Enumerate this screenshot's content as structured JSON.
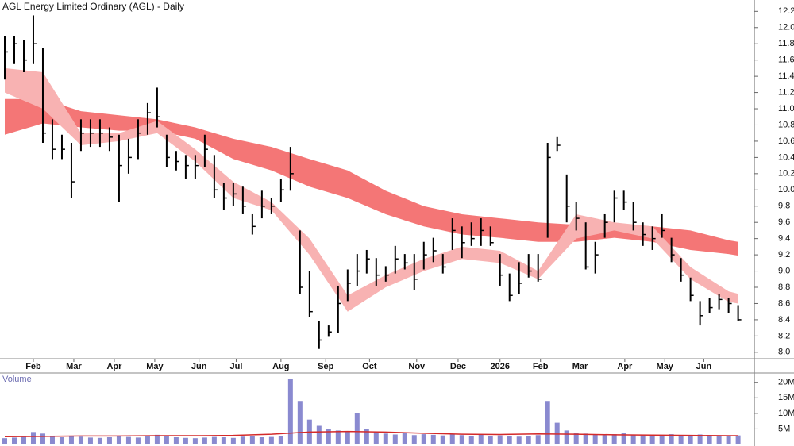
{
  "chart_data": {
    "type": "ohlc",
    "title": "AGL Energy Limited Ordinary (AGL) - Daily",
    "color": "#000000",
    "x": [
      0,
      1,
      2,
      3,
      4,
      5,
      6,
      7,
      8,
      9,
      10,
      11,
      12,
      13,
      14,
      15,
      16,
      17,
      18,
      19,
      20,
      21,
      22,
      23,
      24,
      25,
      26,
      27,
      28,
      29,
      30,
      31,
      32,
      33,
      34,
      35,
      36,
      37,
      38,
      39,
      40,
      41,
      42,
      43,
      44,
      45,
      46,
      47,
      48,
      49,
      50,
      51,
      52,
      53,
      54,
      55,
      56,
      57,
      58,
      59,
      60,
      61,
      62,
      63,
      64,
      65,
      66,
      67,
      68,
      69,
      70,
      71,
      72,
      73,
      74,
      75,
      76,
      77
    ],
    "high": [
      11.9,
      11.9,
      11.85,
      12.15,
      11.75,
      10.87,
      10.68,
      10.58,
      10.87,
      10.87,
      10.87,
      10.77,
      10.68,
      10.63,
      10.87,
      11.07,
      11.26,
      10.68,
      10.48,
      10.43,
      10.43,
      10.68,
      10.43,
      10.09,
      10.09,
      10.04,
      9.7,
      9.99,
      9.9,
      10.14,
      10.53,
      9.5,
      9.0,
      8.38,
      8.33,
      8.82,
      9.02,
      9.21,
      9.26,
      9.16,
      9.06,
      9.31,
      9.21,
      9.21,
      9.36,
      9.41,
      9.21,
      9.65,
      9.55,
      9.6,
      9.65,
      9.55,
      9.21,
      8.97,
      9.11,
      9.21,
      9.21,
      10.58,
      10.65,
      10.19,
      9.85,
      9.6,
      9.36,
      9.7,
      9.99,
      9.99,
      9.85,
      9.6,
      9.55,
      9.7,
      9.41,
      9.16,
      8.92,
      8.63,
      8.67,
      8.72,
      8.67,
      8.58
    ],
    "low": [
      11.36,
      11.55,
      11.45,
      11.55,
      10.58,
      10.38,
      10.38,
      9.9,
      10.48,
      10.53,
      10.53,
      10.48,
      9.85,
      10.2,
      10.38,
      10.68,
      10.77,
      10.28,
      10.24,
      10.14,
      10.14,
      10.28,
      9.9,
      9.75,
      9.8,
      9.7,
      9.45,
      9.65,
      9.7,
      9.85,
      9.99,
      8.72,
      8.43,
      8.04,
      8.19,
      8.24,
      8.63,
      8.82,
      8.97,
      8.82,
      8.87,
      8.97,
      9.02,
      8.77,
      9.02,
      9.11,
      8.97,
      9.26,
      9.16,
      9.31,
      9.31,
      9.31,
      8.82,
      8.63,
      8.72,
      8.92,
      8.87,
      9.41,
      10.48,
      9.6,
      9.5,
      9.02,
      8.97,
      9.41,
      9.6,
      9.75,
      9.5,
      9.31,
      9.26,
      9.41,
      9.11,
      8.87,
      8.63,
      8.33,
      8.48,
      8.53,
      8.48,
      8.38
    ],
    "close": [
      11.7,
      11.8,
      11.6,
      11.8,
      10.7,
      10.5,
      10.5,
      10.1,
      10.7,
      10.7,
      10.7,
      10.65,
      10.3,
      10.4,
      10.7,
      10.95,
      10.9,
      10.4,
      10.35,
      10.3,
      10.3,
      10.5,
      10,
      9.9,
      9.95,
      9.8,
      9.55,
      9.8,
      9.8,
      10,
      10.2,
      8.8,
      8.5,
      8.15,
      8.25,
      8.6,
      8.85,
      9,
      9.15,
      8.95,
      8.95,
      9.15,
      9.1,
      8.9,
      9.2,
      9.25,
      9.05,
      9.5,
      9.35,
      9.4,
      9.5,
      9.35,
      8.95,
      8.7,
      8.85,
      9,
      8.9,
      10.4,
      10.55,
      9.8,
      9.65,
      9.05,
      9.2,
      9.6,
      9.9,
      9.85,
      9.6,
      9.45,
      9.4,
      9.5,
      9.2,
      8.95,
      8.7,
      8.45,
      8.55,
      8.65,
      8.6,
      8.4
    ],
    "xlim": [
      -0.5,
      78.7
    ],
    "xticks": [
      {
        "value": 3,
        "label": "Feb"
      },
      {
        "value": 7.25,
        "label": "Mar"
      },
      {
        "value": 11.5,
        "label": "Apr"
      },
      {
        "value": 15.75,
        "label": "May"
      },
      {
        "value": 20.4,
        "label": "Jun"
      },
      {
        "value": 24.3,
        "label": "Jul"
      },
      {
        "value": 29,
        "label": "Aug"
      },
      {
        "value": 33.7,
        "label": "Sep"
      },
      {
        "value": 38.3,
        "label": "Oct"
      },
      {
        "value": 43.25,
        "label": "Nov"
      },
      {
        "value": 47.6,
        "label": "Dec"
      },
      {
        "value": 52,
        "label": "2026"
      },
      {
        "value": 56.25,
        "label": "Feb"
      },
      {
        "value": 60.4,
        "label": "Mar"
      },
      {
        "value": 65.1,
        "label": "Apr"
      },
      {
        "value": 69.3,
        "label": "May"
      },
      {
        "value": 73.4,
        "label": "Jun"
      }
    ],
    "ylim": [
      7.92,
      12.34
    ],
    "yticks": [
      {
        "value": 8,
        "label": "8.0"
      },
      8.2,
      8.4,
      8.6,
      8.8,
      {
        "value": 9,
        "label": "9.0"
      },
      9.2,
      9.4,
      9.6,
      9.8,
      {
        "value": 10,
        "label": "10.0"
      },
      10.2,
      10.4,
      10.6,
      10.8,
      {
        "value": 11,
        "label": "11.0"
      },
      11.2,
      11.4,
      11.6,
      11.8,
      {
        "value": 12,
        "label": "12.0"
      },
      12.2
    ],
    "bands": {
      "x": [
        0,
        4,
        8,
        12,
        16,
        20,
        24,
        28,
        32,
        36,
        40,
        44,
        48,
        52,
        56,
        60,
        64,
        68,
        72,
        76,
        77
      ],
      "series": [
        {
          "color": "#f47676",
          "upper": [
            11.12,
            11.12,
            10.97,
            10.92,
            10.87,
            10.77,
            10.63,
            10.53,
            10.38,
            10.24,
            9.99,
            9.8,
            9.7,
            9.65,
            9.6,
            9.57,
            9.58,
            9.55,
            9.5,
            9.38,
            9.36
          ],
          "lower": [
            10.68,
            10.82,
            10.77,
            10.73,
            10.73,
            10.63,
            10.38,
            10.24,
            10.04,
            9.9,
            9.7,
            9.55,
            9.45,
            9.41,
            9.36,
            9.36,
            9.41,
            9.36,
            9.26,
            9.21,
            9.19
          ]
        },
        {
          "color": "#f8b2b2",
          "upper": [
            11.5,
            11.45,
            10.7,
            10.7,
            10.85,
            10.5,
            10.1,
            9.85,
            9.4,
            8.7,
            8.95,
            9.15,
            9.3,
            9.25,
            9,
            9.7,
            9.6,
            9.55,
            9.05,
            8.75,
            8.72
          ],
          "lower": [
            11.2,
            11,
            10.55,
            10.6,
            10.7,
            10.35,
            9.9,
            9.75,
            9.2,
            8.5,
            8.8,
            9,
            9.15,
            9.1,
            8.9,
            9.4,
            9.5,
            9.4,
            8.9,
            8.62,
            8.6
          ]
        }
      ]
    },
    "volume": {
      "label": "Volume",
      "color": "#8a8ad0",
      "average_color": "#d42a2a",
      "values": [
        2000000,
        2200000,
        2400000,
        4000000,
        3500000,
        2600000,
        2300000,
        2800000,
        2500000,
        2200000,
        2100000,
        2300000,
        2600000,
        2400000,
        2200000,
        2900000,
        3100000,
        2700000,
        2300000,
        2100000,
        2000000,
        2200000,
        2400000,
        2300000,
        2100000,
        2500000,
        2700000,
        2300000,
        2400000,
        2600000,
        21000000,
        14000000,
        8000000,
        6000000,
        5000000,
        4500000,
        4200000,
        10000000,
        5000000,
        4000000,
        3500000,
        3200000,
        3600000,
        3000000,
        3300000,
        3100000,
        2900000,
        3400000,
        3000000,
        2800000,
        3200000,
        2700000,
        2900000,
        2600000,
        2500000,
        2800000,
        3000000,
        14000000,
        7000000,
        4500000,
        3800000,
        3500000,
        3100000,
        3000000,
        3300000,
        3600000,
        3200000,
        3000000,
        2800000,
        3100000,
        3300000,
        3000000,
        2900000,
        3200000,
        2800000,
        2700000,
        2600000,
        2900000
      ],
      "average": [
        2500000,
        2600000,
        2700000,
        2700000,
        2800000,
        2800000,
        2900000,
        3300000,
        4000000,
        4200000,
        4000000,
        3600000,
        3300000,
        3200000,
        3400000,
        3300000,
        3100000,
        3000000,
        2900000,
        2800000,
        2800000
      ],
      "ylim": [
        0,
        23000000
      ],
      "yticks": [
        {
          "value": 5000000,
          "label": "5M"
        },
        {
          "value": 10000000,
          "label": "10M"
        },
        {
          "value": 15000000,
          "label": "15M"
        },
        {
          "value": 20000000,
          "label": "20M"
        }
      ]
    }
  }
}
